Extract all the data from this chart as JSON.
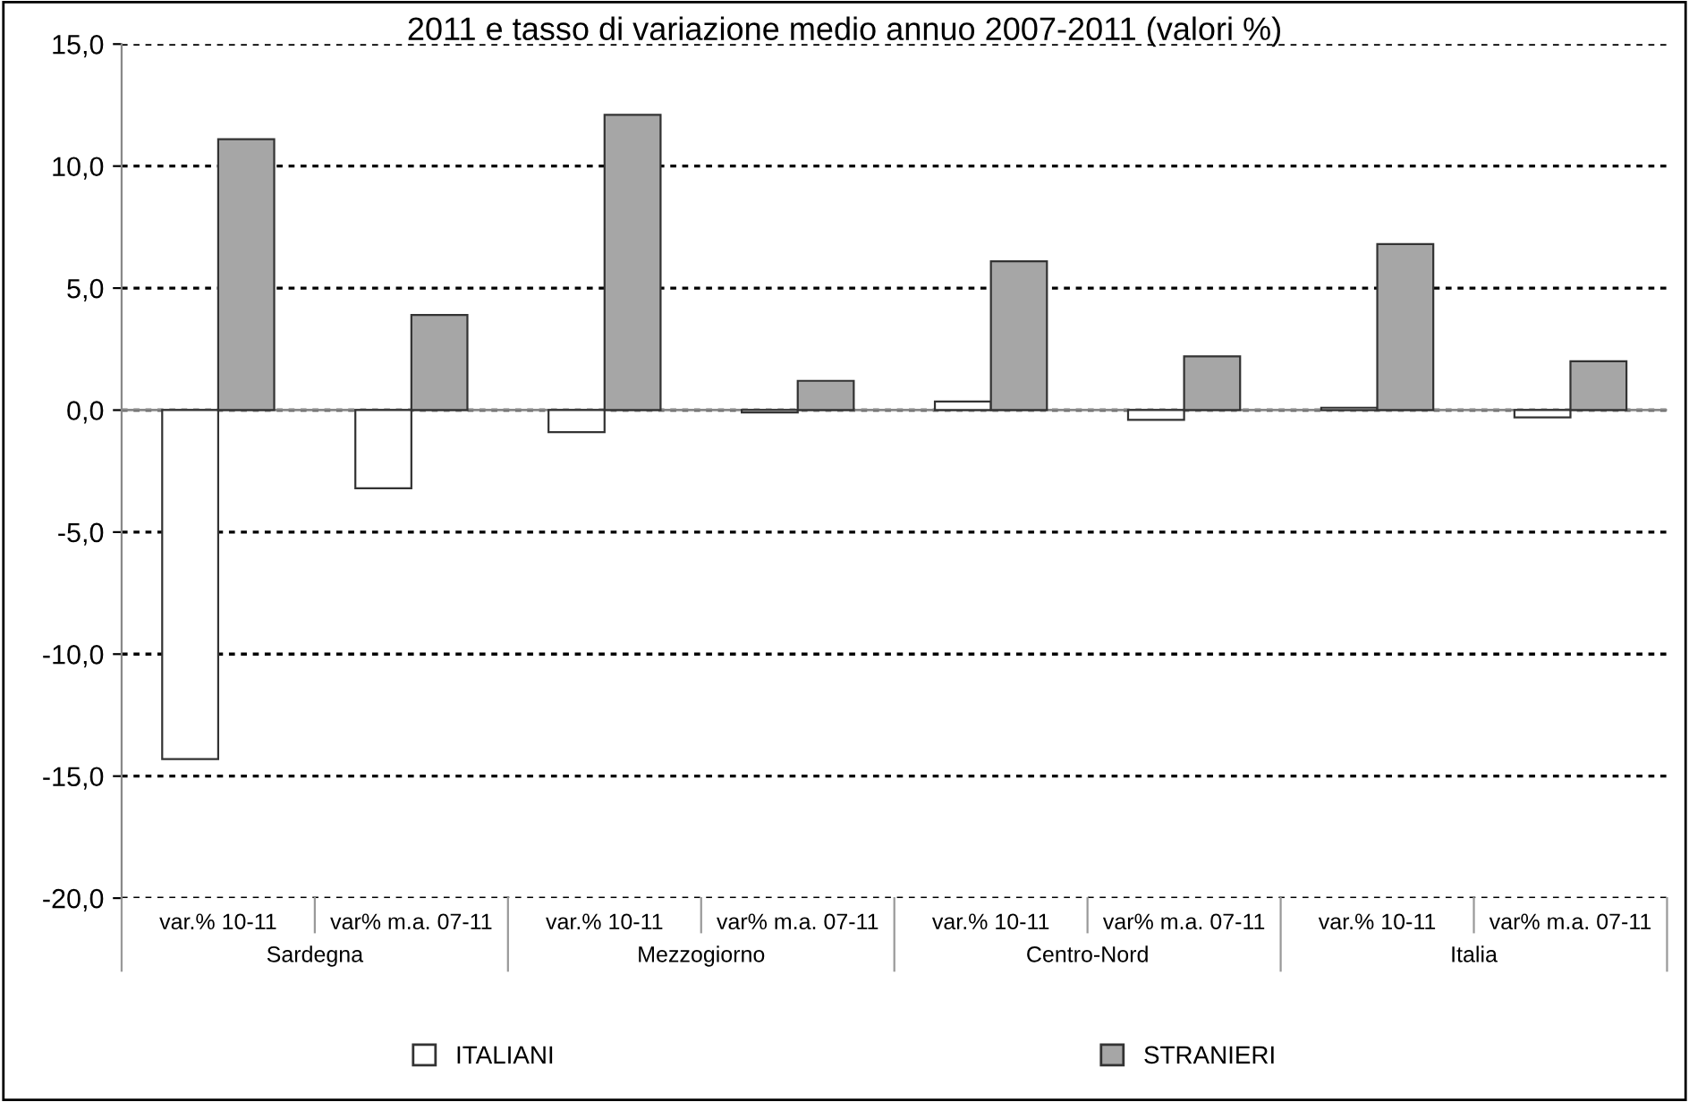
{
  "chart_data": {
    "type": "bar",
    "title": "2011 e tasso di variazione medio annuo 2007-2011 (valori %)",
    "categories": [
      "var.% 10-11",
      "var% m.a. 07-11",
      "var.% 10-11",
      "var% m.a. 07-11",
      "var.% 10-11",
      "var% m.a. 07-11",
      "var.% 10-11",
      "var% m.a. 07-11"
    ],
    "series": [
      {
        "name": "ITALIANI",
        "color": "#ffffff",
        "values": [
          -14.3,
          -3.2,
          -0.9,
          -0.1,
          0.35,
          -0.4,
          0.1,
          -0.3
        ]
      },
      {
        "name": "STRANIERI",
        "color": "#a6a6a6",
        "values": [
          11.1,
          3.9,
          12.1,
          1.2,
          6.1,
          2.2,
          6.8,
          2.0
        ]
      }
    ],
    "annotations": [
      "Sardegna",
      "Mezzogiorno",
      "Centro-Nord",
      "Italia"
    ],
    "ylim": [
      -20,
      15
    ],
    "yticks": [
      {
        "value": -20,
        "label": "-20,0"
      },
      {
        "value": -15,
        "label": "-15,0"
      },
      {
        "value": -10,
        "label": "-10,0"
      },
      {
        "value": -5,
        "label": "-5,0"
      },
      {
        "value": 0,
        "label": "0,0"
      },
      {
        "value": 5,
        "label": "5,0"
      },
      {
        "value": 10,
        "label": "10,0"
      },
      {
        "value": 15,
        "label": "15,0"
      }
    ],
    "grid": "y",
    "line_style": "dotted",
    "legend": "bottom"
  }
}
